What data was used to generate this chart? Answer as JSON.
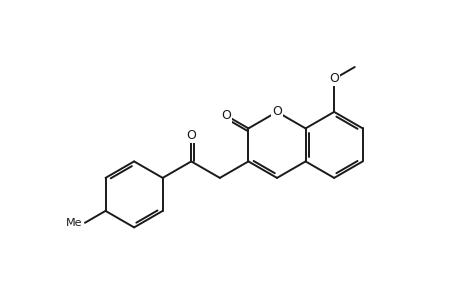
{
  "background_color": "#ffffff",
  "bond_color": "#1a1a1a",
  "bond_lw": 1.4,
  "figsize": [
    4.6,
    3.0
  ],
  "dpi": 100,
  "xlim": [
    0,
    9.5
  ],
  "ylim": [
    -0.5,
    6.5
  ],
  "bl": 1.0,
  "pc_x": 6.0,
  "pc_y": 3.2,
  "label_fontsize": 9,
  "methyl_fontsize": 8
}
